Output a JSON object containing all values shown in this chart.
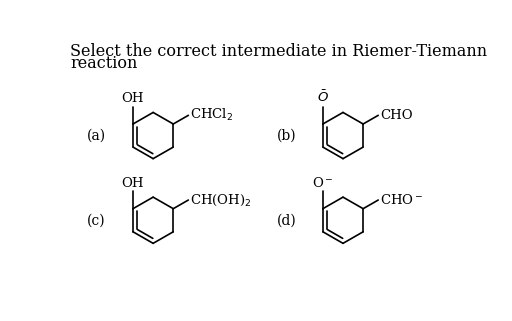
{
  "title_line1": "Select the correct intermediate in Riemer-Tiemann",
  "title_line2": "reaction",
  "title_fontsize": 11.5,
  "bg_color": "#ffffff",
  "text_color": "#000000",
  "label_a": "(a)",
  "label_b": "(b)",
  "label_c": "(c)",
  "label_d": "(d)",
  "fig_w": 5.12,
  "fig_h": 3.21,
  "dpi": 100
}
